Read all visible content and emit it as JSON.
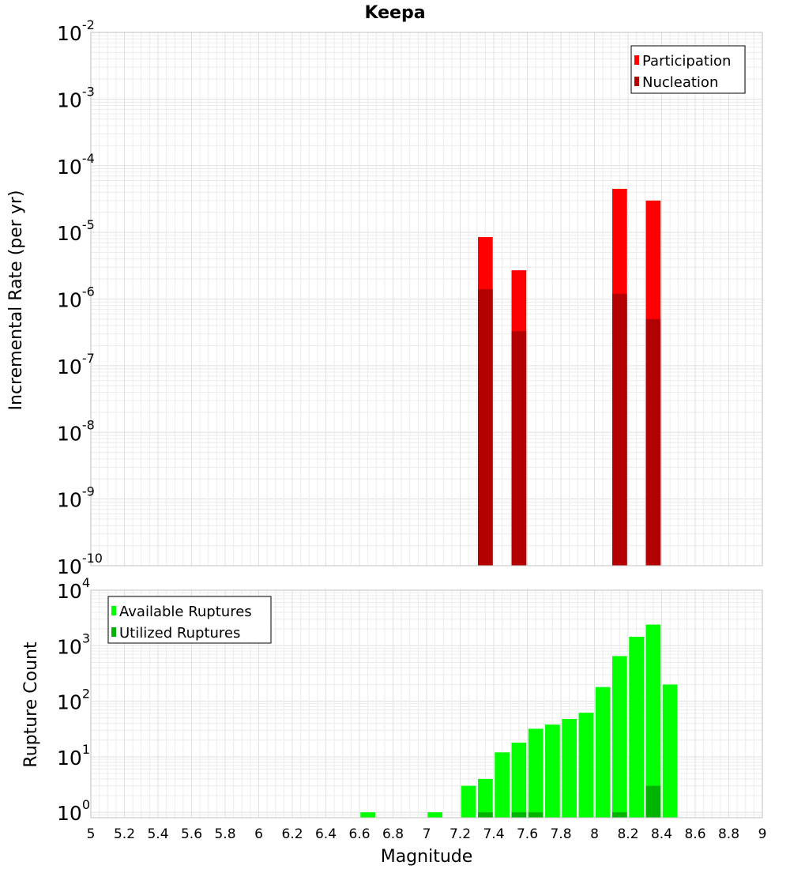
{
  "chart_data": [
    {
      "type": "bar",
      "title": "Keepa",
      "ylabel": "Incremental Rate (per yr)",
      "xlabel": "",
      "y_scale": "log",
      "ylim": [
        1e-10,
        0.01
      ],
      "xlim": [
        5,
        9
      ],
      "y_tick_labels": [
        {
          "base": "10",
          "exp": "-10"
        },
        {
          "base": "10",
          "exp": "-9"
        },
        {
          "base": "10",
          "exp": "-8"
        },
        {
          "base": "10",
          "exp": "-7"
        },
        {
          "base": "10",
          "exp": "-6"
        },
        {
          "base": "10",
          "exp": "-5"
        },
        {
          "base": "10",
          "exp": "-4"
        },
        {
          "base": "10",
          "exp": "-3"
        },
        {
          "base": "10",
          "exp": "-2"
        }
      ],
      "grid": true,
      "legend_position": "top-right",
      "series": [
        {
          "name": "Participation",
          "color": "#ff0000",
          "x": [
            7.35,
            7.55,
            8.15,
            8.35
          ],
          "values": [
            8.5e-06,
            2.7e-06,
            4.5e-05,
            3e-05
          ]
        },
        {
          "name": "Nucleation",
          "color": "#b30000",
          "x": [
            7.35,
            7.55,
            8.15,
            8.35
          ],
          "values": [
            1.4e-06,
            3.3e-07,
            1.2e-06,
            5e-07
          ]
        }
      ]
    },
    {
      "type": "bar",
      "title": "",
      "ylabel": "Rupture Count",
      "xlabel": "Magnitude",
      "y_scale": "log",
      "ylim": [
        0.8,
        10000
      ],
      "xlim": [
        5,
        9
      ],
      "x_ticks": [
        "5",
        "5.2",
        "5.4",
        "5.6",
        "5.8",
        "6",
        "6.2",
        "6.4",
        "6.6",
        "6.8",
        "7",
        "7.2",
        "7.4",
        "7.6",
        "7.8",
        "8",
        "8.2",
        "8.4",
        "8.6",
        "8.8",
        "9"
      ],
      "y_tick_labels": [
        {
          "base": "10",
          "exp": "0"
        },
        {
          "base": "10",
          "exp": "1"
        },
        {
          "base": "10",
          "exp": "2"
        },
        {
          "base": "10",
          "exp": "3"
        },
        {
          "base": "10",
          "exp": "4"
        }
      ],
      "grid": true,
      "legend_position": "top-left",
      "series": [
        {
          "name": "Available Ruptures",
          "color": "#00ff00",
          "x": [
            6.65,
            7.05,
            7.25,
            7.35,
            7.45,
            7.55,
            7.65,
            7.75,
            7.85,
            7.95,
            8.05,
            8.15,
            8.25,
            8.35,
            8.45
          ],
          "values": [
            1,
            1,
            3,
            4,
            12,
            18,
            32,
            38,
            48,
            62,
            180,
            650,
            1450,
            2400,
            200
          ]
        },
        {
          "name": "Utilized Ruptures",
          "color": "#00b300",
          "x": [
            7.35,
            7.55,
            7.65,
            8.15,
            8.35
          ],
          "values": [
            1,
            1,
            1,
            1,
            3
          ]
        }
      ]
    }
  ]
}
